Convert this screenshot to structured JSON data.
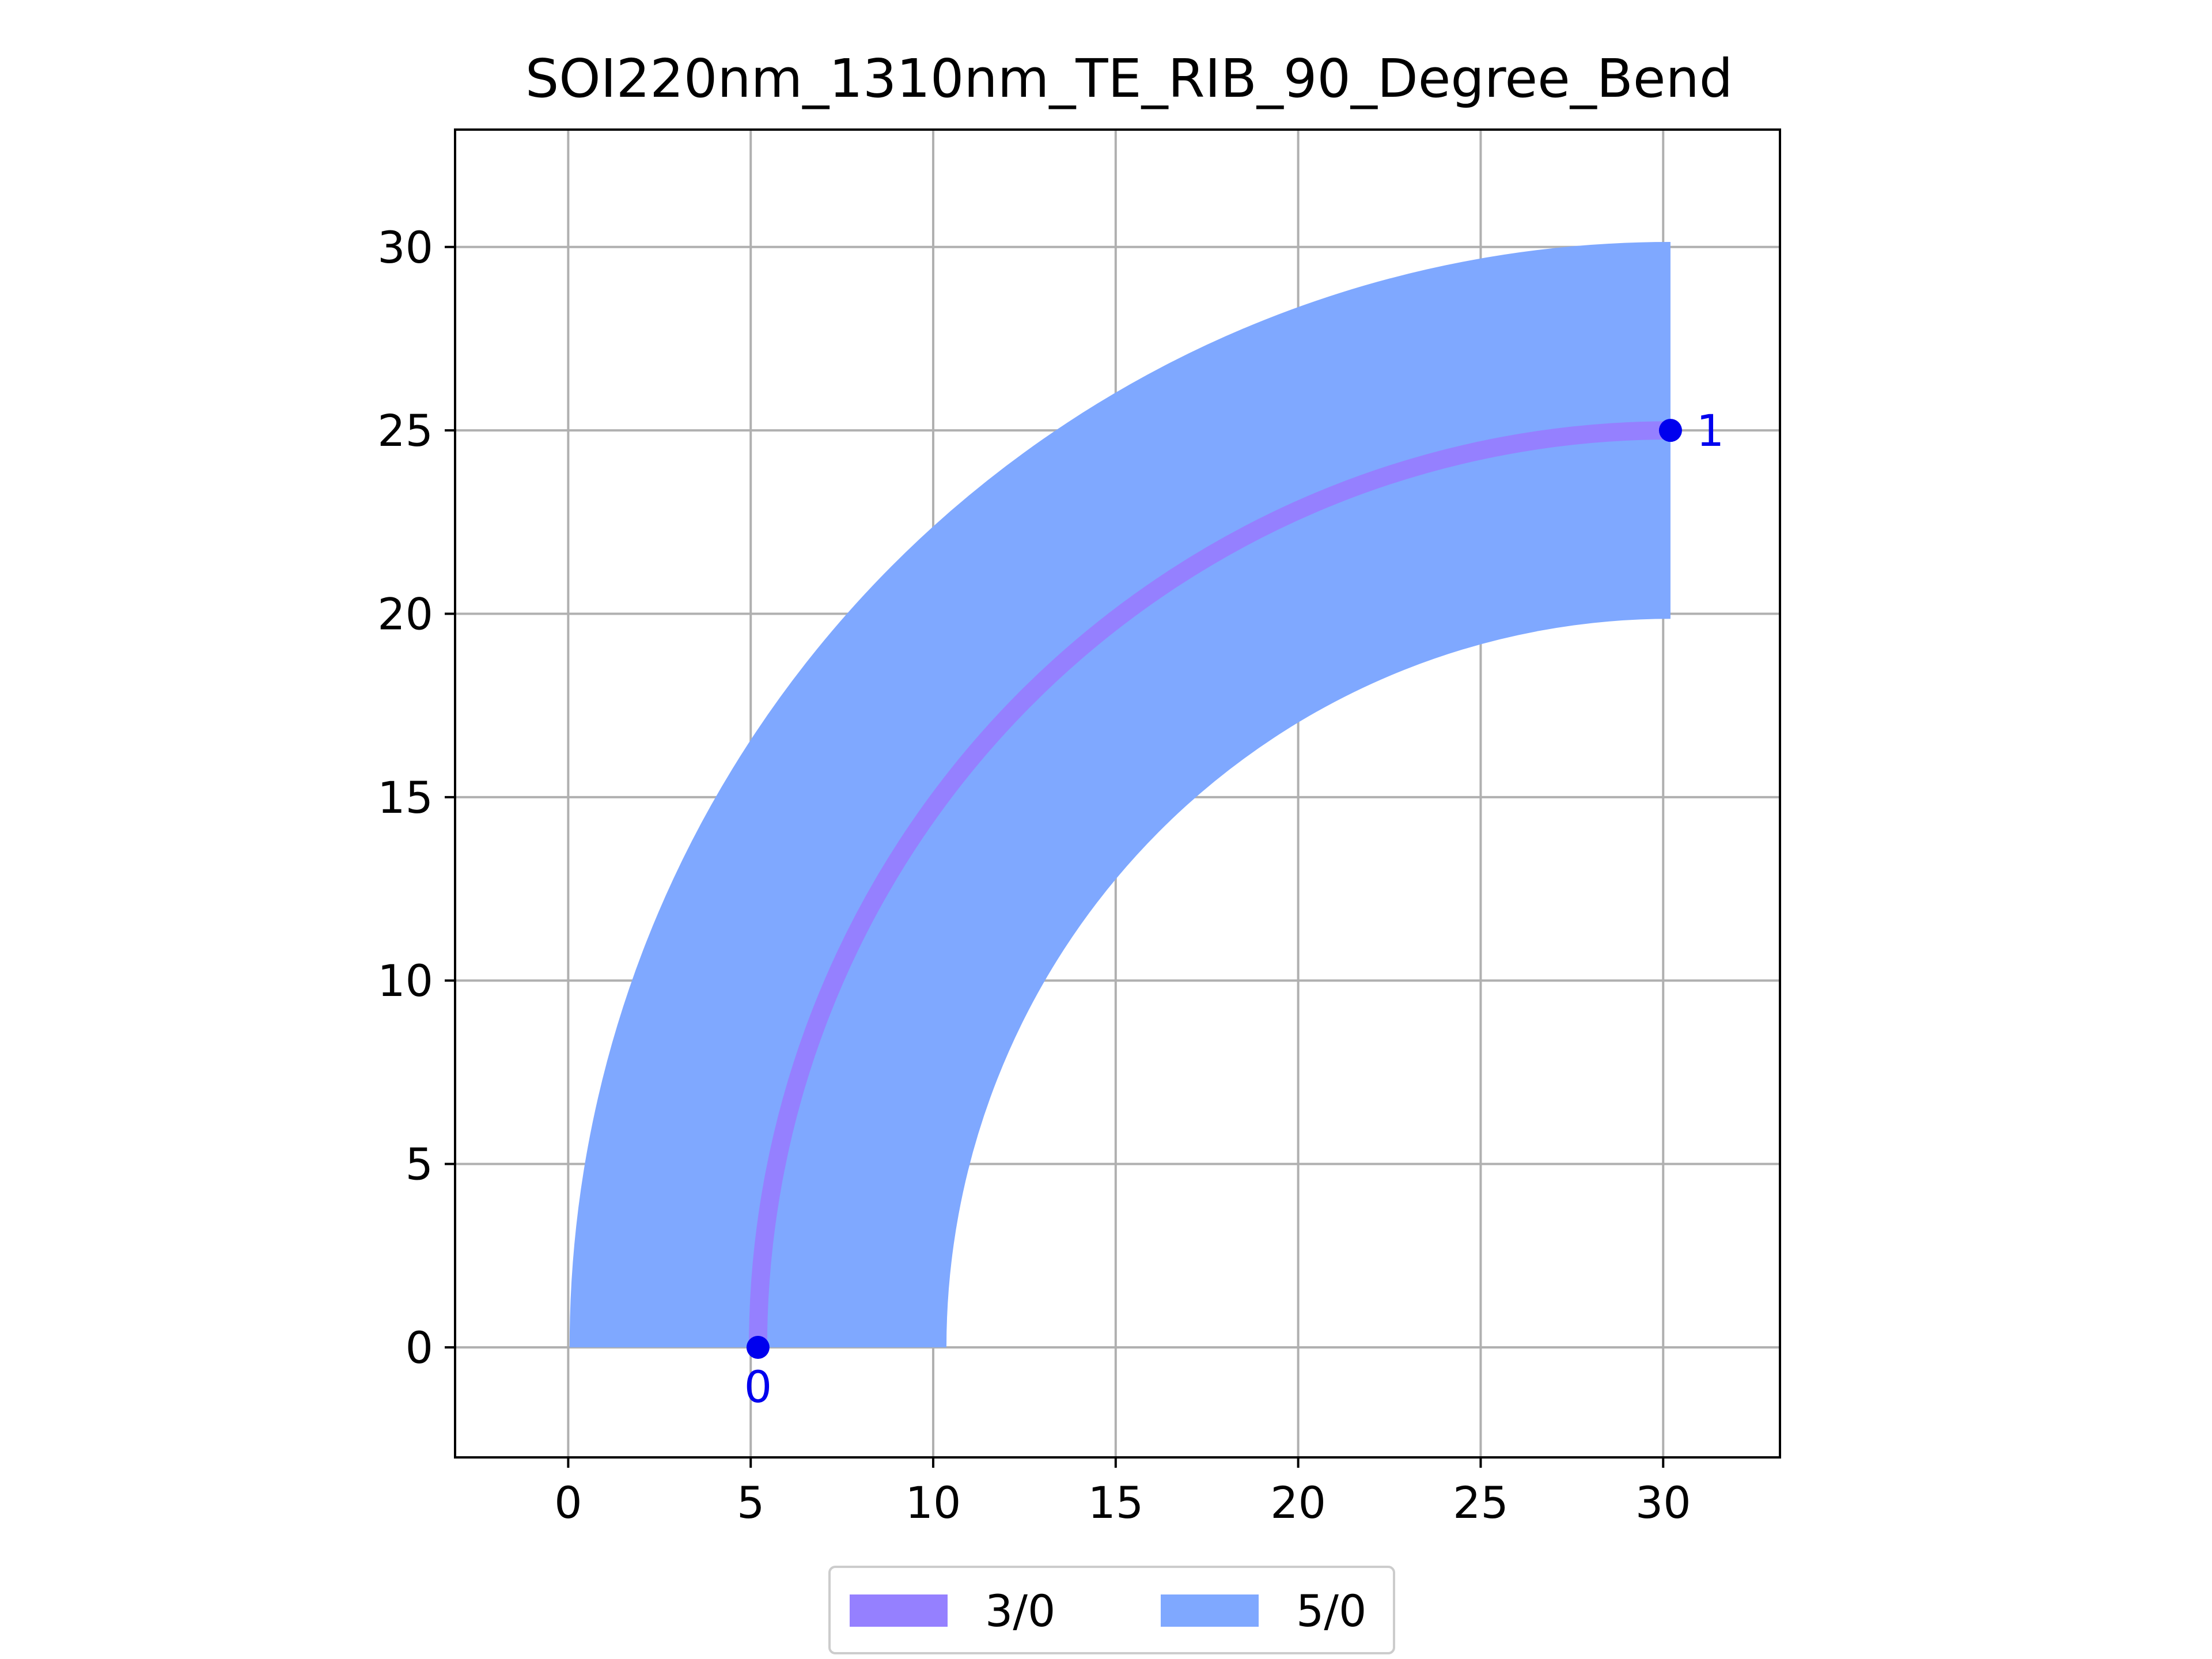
{
  "chart_data": {
    "type": "area",
    "title": "SOI220nm_1310nm_TE_RIB_90_Degree_Bend",
    "xlabel": "",
    "ylabel": "",
    "xlim": [
      -3.1,
      33.2
    ],
    "ylim": [
      -3.0,
      33.2
    ],
    "xticks": [
      0,
      5,
      10,
      15,
      20,
      25,
      30
    ],
    "yticks": [
      0,
      5,
      10,
      15,
      20,
      25,
      30
    ],
    "grid": true,
    "legend_position": "bottom-center",
    "bend": {
      "center": [
        30.2,
        0
      ],
      "radius": 25.0,
      "start_angle_deg": 180,
      "end_angle_deg": 90
    },
    "series": [
      {
        "name": "3/0",
        "color": "#9580ff",
        "kind": "waveguide-core",
        "width": 0.5
      },
      {
        "name": "5/0",
        "color": "#7fa8ff",
        "kind": "rib-slab",
        "width": 10.3
      }
    ],
    "ports": [
      {
        "label": "0",
        "x": 5.2,
        "y": 0.0,
        "color": "#0000ee"
      },
      {
        "label": "1",
        "x": 30.2,
        "y": 25.0,
        "color": "#0000ee"
      }
    ]
  }
}
